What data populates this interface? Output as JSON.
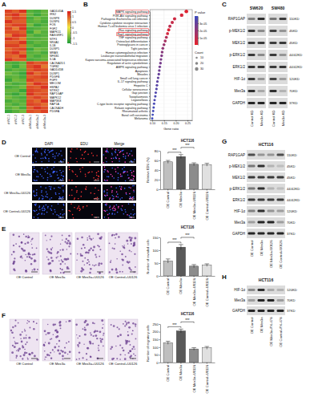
{
  "chart_data": [
    {
      "type": "heatmap",
      "panel": "A",
      "rows": [
        "GADD45A",
        "IRS2",
        "DUSP8",
        "DUSP6",
        "FOS",
        "FGF2",
        "MAPK11",
        "RASGRF1",
        "NTF3",
        "NR4A1",
        "IL1B",
        "DUSP5",
        "MRAS",
        "NFKB1",
        "IL1A",
        "CACNA2D1",
        "TGFB2",
        "GADD45B",
        "DUSP1",
        "PDGFB",
        "FGF9",
        "MECOM",
        "HSPA2",
        "NTRK2",
        "RAP1GAP",
        "MAPK12",
        "MAP3K8",
        "RAP1A",
        "CACNA1H",
        "PDGFA"
      ],
      "columns": [
        "shNC-1",
        "shNC-2",
        "shNC-3",
        "shMex3a-1",
        "shMex3a-2",
        "shMex3a-3"
      ],
      "cells": [
        [
          1.2,
          1.0,
          1.3,
          -1.1,
          -1.2,
          -1.0
        ],
        [
          1.1,
          1.3,
          0.9,
          -1.0,
          -1.3,
          -1.0
        ],
        [
          0.9,
          1.2,
          1.1,
          -1.2,
          -0.9,
          -1.1
        ],
        [
          1.3,
          1.0,
          1.0,
          -1.1,
          -1.0,
          -1.2
        ],
        [
          1.0,
          1.2,
          1.2,
          -0.9,
          -1.3,
          -1.1
        ],
        [
          1.2,
          0.8,
          1.3,
          -1.2,
          -1.1,
          -1.0
        ],
        [
          1.1,
          1.1,
          1.0,
          -1.3,
          -0.8,
          -1.1
        ],
        [
          0.8,
          1.3,
          1.2,
          -1.0,
          -1.2,
          -1.1
        ],
        [
          1.3,
          1.1,
          0.8,
          -1.1,
          -1.1,
          -1.0
        ],
        [
          1.0,
          1.0,
          1.3,
          -1.2,
          -1.0,
          -1.1
        ],
        [
          1.2,
          1.2,
          0.9,
          -1.0,
          -1.2,
          -1.1
        ],
        [
          0.9,
          1.1,
          1.2,
          -1.3,
          -0.9,
          -1.0
        ],
        [
          1.1,
          1.3,
          0.9,
          -1.1,
          -1.0,
          -1.2
        ],
        [
          1.0,
          0.9,
          1.3,
          -1.0,
          -1.2,
          -1.0
        ],
        [
          1.3,
          1.0,
          1.0,
          -1.2,
          -1.1,
          -1.0
        ],
        [
          -1.1,
          -1.2,
          -1.0,
          1.2,
          1.0,
          1.1
        ],
        [
          -1.0,
          -1.3,
          -0.9,
          1.1,
          1.3,
          0.8
        ],
        [
          -1.2,
          -1.0,
          -1.1,
          1.0,
          1.2,
          1.1
        ],
        [
          -0.9,
          -1.1,
          -1.3,
          1.3,
          0.9,
          1.1
        ],
        [
          -1.1,
          -1.0,
          -1.2,
          1.0,
          1.1,
          1.2
        ],
        [
          -1.3,
          -0.9,
          -1.0,
          1.2,
          1.0,
          1.0
        ],
        [
          -1.0,
          -1.2,
          -1.1,
          0.9,
          1.3,
          1.1
        ],
        [
          -1.2,
          -1.1,
          -0.9,
          1.1,
          1.0,
          1.3
        ],
        [
          -1.0,
          -1.0,
          -1.3,
          1.2,
          1.1,
          1.0
        ],
        [
          -1.1,
          -1.3,
          -1.0,
          1.3,
          1.0,
          1.1
        ],
        [
          -0.9,
          -1.1,
          -1.2,
          1.0,
          1.2,
          1.0
        ],
        [
          -1.2,
          -1.0,
          -1.1,
          1.1,
          0.9,
          1.3
        ],
        [
          -1.0,
          -1.2,
          -1.0,
          1.2,
          1.1,
          0.9
        ],
        [
          -1.1,
          -0.9,
          -1.2,
          1.0,
          1.3,
          1.1
        ],
        [
          -1.3,
          -1.1,
          -0.9,
          1.1,
          1.0,
          1.2
        ]
      ],
      "colorbar": {
        "range": [
          -1.5,
          1.5
        ],
        "ticks": [
          1.5,
          1,
          0.5,
          0,
          -0.5,
          -1,
          -1.5
        ]
      },
      "colors": [
        "#1f9e3a",
        "#f0e442",
        "#d7191c"
      ]
    },
    {
      "type": "dot",
      "panel": "B",
      "categories": [
        "MAPK signaling pathway",
        "PI3K-Akt signaling pathway",
        "Pathogenic Escherichia coli infection",
        "Cytokine-cytokine receptor interaction",
        "Human T-cell leukemia virus 1 infection",
        "Ras signaling pathway",
        "Rap1 signaling pathway",
        "TNF signaling pathway",
        "Osteoclast differentiation",
        "Proteoglycans in cancer",
        "Tight junction",
        "Human cytomegalovirus infection",
        "Leukocyte transendothelial migration",
        "Kaposi sarcoma-associated herpesvirus infection",
        "Regulation of actin cytoskeleton",
        "AMPK signaling pathway",
        "Apoptosis",
        "Measles",
        "Small cell lung cancer",
        "IL-17 signaling pathway",
        "Hepatitis C",
        "Cellular senescence",
        "Gap junction",
        "Toxoplasmosis",
        "Legionellosis",
        "C-type lectin receptor signaling pathway",
        "Relaxin signaling pathway",
        "Rheumatoid arthritis",
        "Basal cell carcinoma",
        "Melanoma"
      ],
      "values": [
        0.245,
        0.225,
        0.195,
        0.185,
        0.175,
        0.17,
        0.165,
        0.16,
        0.155,
        0.15,
        0.145,
        0.142,
        0.14,
        0.137,
        0.135,
        0.132,
        0.13,
        0.128,
        0.125,
        0.122,
        0.12,
        0.118,
        0.115,
        0.113,
        0.11,
        0.108,
        0.106,
        0.104,
        0.102,
        0.1
      ],
      "counts": [
        33,
        30,
        26,
        25,
        24,
        23,
        22,
        21,
        21,
        20,
        19,
        19,
        18,
        18,
        18,
        17,
        17,
        17,
        16,
        16,
        16,
        15,
        15,
        15,
        14,
        14,
        14,
        13,
        13,
        13
      ],
      "p_values": [
        2e-06,
        4e-06,
        6e-06,
        8e-06,
        1e-05,
        3e-06,
        5e-06,
        1.2e-05,
        1.5e-05,
        1.8e-05,
        2e-05,
        2.2e-05,
        2.4e-05,
        2.5e-05,
        2.6e-05,
        2.7e-05,
        2.8e-05,
        3e-05,
        3.1e-05,
        3.2e-05,
        3.3e-05,
        3.4e-05,
        3.5e-05,
        3.6e-05,
        3.6e-05,
        3.7e-05,
        3.8e-05,
        3.8e-05,
        3.9e-05,
        3.9e-05
      ],
      "xlabel": "Gene ratio",
      "xlim": [
        0.09,
        0.27
      ],
      "xticks": [
        {
          "value": 0.1,
          "label": "0.10"
        },
        {
          "value": 0.15,
          "label": "0.15"
        },
        {
          "value": 0.2,
          "label": "0.20"
        },
        {
          "value": 0.25,
          "label": "0.25"
        }
      ],
      "grid": true,
      "color_title": "P value",
      "color_range": [
        0,
        4e-05
      ],
      "color_ticks": [
        {
          "value": 1e-05,
          "label": "1e-05"
        },
        {
          "value": 2e-05,
          "label": "2e-05"
        },
        {
          "value": 3e-05,
          "label": "3e-05"
        }
      ],
      "colors": [
        "#e8222b",
        "#3b4cc0"
      ],
      "size_title": "Count",
      "size_ticks": [
        10,
        20,
        30
      ],
      "boxed": [
        0,
        5,
        6
      ]
    },
    {
      "type": "bar",
      "title": "HCT116",
      "ylabel": "Relative EDU (%)",
      "categories": [
        "OE Control",
        "OE Mex3a",
        "OE Mex3a+U0126",
        "OE Control+U0126"
      ],
      "values": [
        57,
        68,
        52,
        51
      ],
      "errors": [
        3,
        4,
        3,
        3
      ],
      "ylim": [
        0,
        80
      ],
      "yticks": [
        0,
        20,
        40,
        60,
        80
      ],
      "colors": [
        "#bfbfbf",
        "#595959",
        "#8c8c8c",
        "#e0e0e0"
      ],
      "significance": [
        {
          "from": 0,
          "to": 1,
          "label": "***"
        },
        {
          "from": 1,
          "to": 2,
          "label": "***"
        }
      ]
    },
    {
      "type": "bar",
      "title": "HCT116",
      "ylabel": "Number of invaded cells",
      "categories": [
        "OE Control",
        "OE Mex3a",
        "OE Mex3a+U0126",
        "OE Control+U0126"
      ],
      "values": [
        58,
        112,
        38,
        42
      ],
      "errors": [
        8,
        10,
        6,
        5
      ],
      "ylim": [
        0,
        150
      ],
      "yticks": [
        0,
        50,
        100,
        150
      ],
      "colors": [
        "#bfbfbf",
        "#595959",
        "#8c8c8c",
        "#e0e0e0"
      ],
      "significance": [
        {
          "from": 0,
          "to": 1,
          "label": "***"
        },
        {
          "from": 1,
          "to": 2,
          "label": "***"
        }
      ]
    },
    {
      "type": "bar",
      "title": "HCT116",
      "ylabel": "Number of migratory cells",
      "categories": [
        "OE Control",
        "OE Mex3a",
        "OE Mex3a+U0126",
        "OE Control+U0126"
      ],
      "values": [
        128,
        205,
        88,
        95
      ],
      "errors": [
        10,
        12,
        8,
        9
      ],
      "ylim": [
        0,
        250
      ],
      "yticks": [
        0,
        50,
        100,
        150,
        200,
        250
      ],
      "colors": [
        "#bfbfbf",
        "#595959",
        "#8c8c8c",
        "#e0e0e0"
      ],
      "significance": [
        {
          "from": 0,
          "to": 1,
          "label": "***"
        },
        {
          "from": 1,
          "to": 2,
          "label": "***"
        }
      ]
    }
  ],
  "micrographs": [
    {
      "panel": "D",
      "channels": [
        "DAPI",
        "EDU",
        "Merge"
      ],
      "groups": [
        "OE Control",
        "OE Mex3a",
        "OE Mex3a+U0126",
        "OE Control+U0126"
      ]
    },
    {
      "panel": "E",
      "groups": [
        "OE Control",
        "OE Mex3a",
        "OE Mex3a+U0126",
        "OE Control+U0126"
      ]
    },
    {
      "panel": "F",
      "groups": [
        "OE Control",
        "OE Mex3a",
        "OE Mex3a+U0126",
        "OE Control+U0126"
      ]
    }
  ],
  "blots": [
    {
      "panel": "C",
      "groups": [
        "SW620",
        "SW480"
      ],
      "lanes": [
        "Control KD",
        "Mex3a KD"
      ],
      "rows": [
        {
          "protein": "RAP1GAP",
          "size": "110KD",
          "intensity": [
            [
              0.45,
              0.85
            ],
            [
              0.5,
              0.8
            ]
          ]
        },
        {
          "protein": "p-MEK1/2",
          "size": "45KD",
          "intensity": [
            [
              0.8,
              0.4
            ],
            [
              0.75,
              0.35
            ]
          ]
        },
        {
          "protein": "MEK1/2",
          "size": "45KD",
          "intensity": [
            [
              0.8,
              0.8
            ],
            [
              0.78,
              0.8
            ]
          ]
        },
        {
          "protein": "p-ERK1/2",
          "size": "44/42KD",
          "intensity": [
            [
              0.8,
              0.4
            ],
            [
              0.8,
              0.35
            ]
          ]
        },
        {
          "protein": "ERK1/2",
          "size": "44/42KD",
          "intensity": [
            [
              0.82,
              0.8
            ],
            [
              0.8,
              0.82
            ]
          ]
        },
        {
          "protein": "HIF-1α",
          "size": "120KD",
          "intensity": [
            [
              0.8,
              0.35
            ],
            [
              0.75,
              0.3
            ]
          ]
        },
        {
          "protein": "Mex3a",
          "size": "70KD",
          "intensity": [
            [
              0.85,
              0.25
            ],
            [
              0.85,
              0.2
            ]
          ]
        },
        {
          "protein": "GAPDH",
          "size": "37KD",
          "intensity": [
            [
              0.9,
              0.9
            ],
            [
              0.9,
              0.9
            ]
          ]
        }
      ]
    },
    {
      "panel": "G",
      "groups": [
        "HCT116"
      ],
      "lanes": [
        "OE Control",
        "OE Mex3a",
        "OE Mex3a+U0126",
        "OE Control+U0126"
      ],
      "rows": [
        {
          "protein": "RAP1GAP",
          "size": "110KD",
          "intensity": [
            [
              0.7,
              0.35,
              0.35,
              0.7
            ]
          ]
        },
        {
          "protein": "p-MEK1/2",
          "size": "45KD",
          "intensity": [
            [
              0.5,
              0.85,
              0.2,
              0.15
            ]
          ]
        },
        {
          "protein": "MEK1/2",
          "size": "45KD",
          "intensity": [
            [
              0.8,
              0.8,
              0.8,
              0.8
            ]
          ]
        },
        {
          "protein": "p-ERK1/2",
          "size": "44/42KD",
          "intensity": [
            [
              0.5,
              0.85,
              0.2,
              0.15
            ]
          ]
        },
        {
          "protein": "ERK1/2",
          "size": "44/42KD",
          "intensity": [
            [
              0.8,
              0.8,
              0.8,
              0.8
            ]
          ]
        },
        {
          "protein": "HIF-1α",
          "size": "120KD",
          "intensity": [
            [
              0.45,
              0.85,
              0.35,
              0.3
            ]
          ]
        },
        {
          "protein": "Mex3a",
          "size": "70KD",
          "intensity": [
            [
              0.3,
              0.9,
              0.9,
              0.3
            ]
          ]
        },
        {
          "protein": "GAPDH",
          "size": "37KD",
          "intensity": [
            [
              0.9,
              0.9,
              0.9,
              0.9
            ]
          ]
        }
      ]
    },
    {
      "panel": "H",
      "groups": [
        "HCT116"
      ],
      "lanes": [
        "OE Control",
        "OE Mex3a",
        "OE Mex3a+PX-478",
        "OE Control+PX-478"
      ],
      "rows": [
        {
          "protein": "HIF-1α",
          "size": "120KD",
          "intensity": [
            [
              0.4,
              0.85,
              0.25,
              0.2
            ]
          ]
        },
        {
          "protein": "Mex3a",
          "size": "70KD",
          "intensity": [
            [
              0.3,
              0.9,
              0.9,
              0.3
            ]
          ]
        },
        {
          "protein": "GAPDH",
          "size": "37KD",
          "intensity": [
            [
              0.9,
              0.9,
              0.9,
              0.9
            ]
          ]
        }
      ]
    }
  ]
}
